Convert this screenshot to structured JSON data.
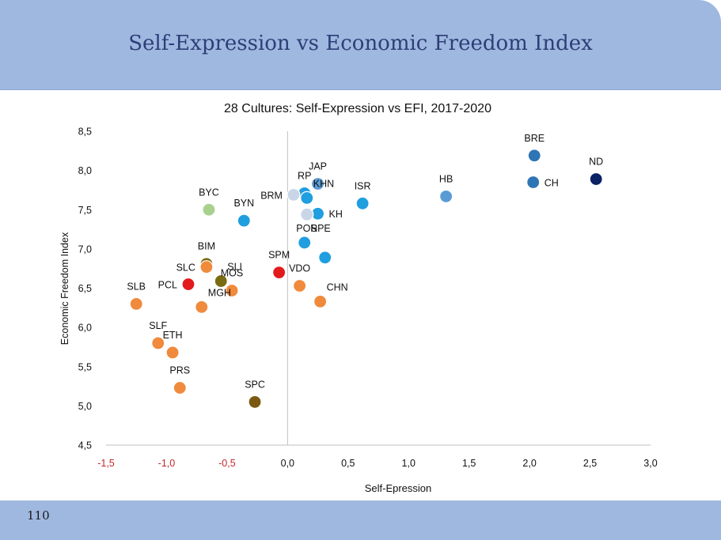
{
  "slide": {
    "title": "Self-Expression vs Economic Freedom Index",
    "page_number": "110"
  },
  "colors": {
    "header_bg": "#9fb8e0",
    "title_text": "#2e3e77",
    "negative_tick": "#c0282d"
  },
  "chart_data": {
    "type": "scatter",
    "title": "28 Cultures: Self-Expression vs EFI, 2017-2020",
    "xlabel": "Self-Epression",
    "ylabel": "Economic Freedom Index",
    "xlim": [
      -1.5,
      3.0
    ],
    "ylim": [
      4.5,
      8.5
    ],
    "xticks": [
      -1.5,
      -1.0,
      -0.5,
      0.0,
      0.5,
      1.0,
      1.5,
      2.0,
      2.5,
      3.0
    ],
    "xtick_labels": [
      "-1,5",
      "-1,0",
      "-0,5",
      "0,0",
      "0,5",
      "1,0",
      "1,5",
      "2,0",
      "2,5",
      "3,0"
    ],
    "yticks": [
      4.5,
      5.0,
      5.5,
      6.0,
      6.5,
      7.0,
      7.5,
      8.0,
      8.5
    ],
    "ytick_labels": [
      "4,5",
      "5,0",
      "5,5",
      "6,0",
      "6,5",
      "7,0",
      "7,5",
      "8,0",
      "8,5"
    ],
    "grid": false,
    "points": [
      {
        "label": "BRE",
        "x": 2.04,
        "y": 8.19,
        "color": "#2e75b6",
        "label_pos": "top"
      },
      {
        "label": "ND",
        "x": 2.55,
        "y": 7.89,
        "color": "#0b2265",
        "label_pos": "top"
      },
      {
        "label": "CH",
        "x": 2.03,
        "y": 7.85,
        "color": "#2e75b6",
        "label_pos": "right"
      },
      {
        "label": "HB",
        "x": 1.31,
        "y": 7.67,
        "color": "#5b9bd5",
        "label_pos": "top"
      },
      {
        "label": "ISR",
        "x": 0.62,
        "y": 7.58,
        "color": "#1f9ee0",
        "label_pos": "top"
      },
      {
        "label": "JAP",
        "x": 0.25,
        "y": 7.83,
        "color": "#5b9bd5",
        "label_pos": "top"
      },
      {
        "label": "RP",
        "x": 0.14,
        "y": 7.71,
        "color": "#1f9ee0",
        "label_pos": "top"
      },
      {
        "label": "BRM",
        "x": 0.05,
        "y": 7.69,
        "color": "#c9d6e8",
        "label_pos": "left"
      },
      {
        "label": "KHN",
        "x": 0.16,
        "y": 7.65,
        "color": "#1f9ee0",
        "label_pos": "topright"
      },
      {
        "label": "KH",
        "x": 0.25,
        "y": 7.45,
        "color": "#1f9ee0",
        "label_pos": "right"
      },
      {
        "label": "POR",
        "x": 0.16,
        "y": 7.44,
        "color": "#c9d6e8",
        "label_pos": "bottom"
      },
      {
        "label": "SPE",
        "x": 0.14,
        "y": 7.08,
        "color": "#1f9ee0",
        "label_pos": "topright"
      },
      {
        "label": "",
        "x": 0.31,
        "y": 6.89,
        "color": "#1f9ee0",
        "label_pos": "none"
      },
      {
        "label": "BYN",
        "x": -0.36,
        "y": 7.36,
        "color": "#1f9ee0",
        "label_pos": "top"
      },
      {
        "label": "BYC",
        "x": -0.65,
        "y": 7.5,
        "color": "#a9d18e",
        "label_pos": "top"
      },
      {
        "label": "SPM",
        "x": -0.07,
        "y": 6.7,
        "color": "#e31a1c",
        "label_pos": "top"
      },
      {
        "label": "VDO",
        "x": 0.1,
        "y": 6.53,
        "color": "#f08a3c",
        "label_pos": "top"
      },
      {
        "label": "CHN",
        "x": 0.27,
        "y": 6.33,
        "color": "#f08a3c",
        "label_pos": "topright"
      },
      {
        "label": "BIM",
        "x": -0.67,
        "y": 6.81,
        "color": "#7a6a12",
        "label_pos": "top"
      },
      {
        "label": "SLC",
        "x": -0.67,
        "y": 6.77,
        "color": "#f08a3c",
        "label_pos": "left"
      },
      {
        "label": "SLI",
        "x": -0.55,
        "y": 6.59,
        "color": "#7a6a12",
        "label_pos": "topright"
      },
      {
        "label": "MOS",
        "x": -0.46,
        "y": 6.47,
        "color": "#f08a3c",
        "label_pos": "top"
      },
      {
        "label": "PCL",
        "x": -0.82,
        "y": 6.55,
        "color": "#e31a1c",
        "label_pos": "left"
      },
      {
        "label": "MGH",
        "x": -0.71,
        "y": 6.26,
        "color": "#f08a3c",
        "label_pos": "topright"
      },
      {
        "label": "SLB",
        "x": -1.25,
        "y": 6.3,
        "color": "#f08a3c",
        "label_pos": "top"
      },
      {
        "label": "SLF",
        "x": -1.07,
        "y": 5.8,
        "color": "#f08a3c",
        "label_pos": "top"
      },
      {
        "label": "ETH",
        "x": -0.95,
        "y": 5.68,
        "color": "#f08a3c",
        "label_pos": "top"
      },
      {
        "label": "PRS",
        "x": -0.89,
        "y": 5.23,
        "color": "#f08a3c",
        "label_pos": "top"
      },
      {
        "label": "SPC",
        "x": -0.27,
        "y": 5.05,
        "color": "#7a5a12",
        "label_pos": "top"
      }
    ]
  }
}
